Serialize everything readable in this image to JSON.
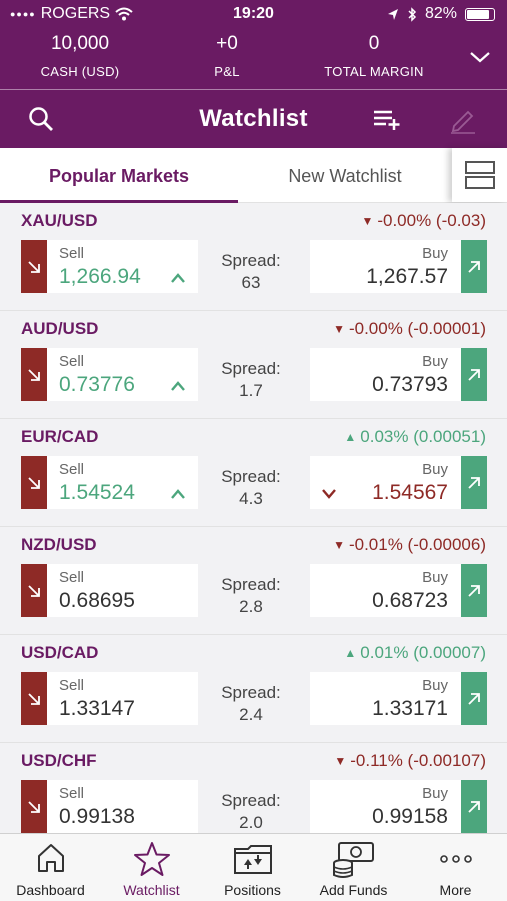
{
  "status": {
    "carrier": "ROGERS",
    "time": "19:20",
    "battery": "82%"
  },
  "account": {
    "cash_value": "10,000",
    "cash_label": "CASH (USD)",
    "pnl_value": "+0",
    "pnl_label": "P&L",
    "margin_value": "0",
    "margin_label": "TOTAL MARGIN"
  },
  "header": {
    "title": "Watchlist"
  },
  "tabs": {
    "active": "Popular Markets",
    "other": "New Watchlist"
  },
  "labels": {
    "sell": "Sell",
    "buy": "Buy",
    "spread": "Spread:"
  },
  "colors": {
    "brand": "#6a1b63",
    "sell": "#8e2a26",
    "buy": "#4ca67d"
  },
  "markets": [
    {
      "symbol": "XAU/USD",
      "change": "-0.00% (-0.03)",
      "direction": "down",
      "sell": "1,266.94",
      "sell_tick": "up",
      "spread": "63",
      "buy": "1,267.57",
      "buy_tick": "none"
    },
    {
      "symbol": "AUD/USD",
      "change": "-0.00% (-0.00001)",
      "direction": "down",
      "sell": "0.73776",
      "sell_tick": "up",
      "spread": "1.7",
      "buy": "0.73793",
      "buy_tick": "none"
    },
    {
      "symbol": "EUR/CAD",
      "change": "0.03% (0.00051)",
      "direction": "up",
      "sell": "1.54524",
      "sell_tick": "up",
      "spread": "4.3",
      "buy": "1.54567",
      "buy_tick": "down"
    },
    {
      "symbol": "NZD/USD",
      "change": "-0.01% (-0.00006)",
      "direction": "down",
      "sell": "0.68695",
      "sell_tick": "none",
      "spread": "2.8",
      "buy": "0.68723",
      "buy_tick": "none"
    },
    {
      "symbol": "USD/CAD",
      "change": "0.01% (0.00007)",
      "direction": "up",
      "sell": "1.33147",
      "sell_tick": "none",
      "spread": "2.4",
      "buy": "1.33171",
      "buy_tick": "none"
    },
    {
      "symbol": "USD/CHF",
      "change": "-0.11% (-0.00107)",
      "direction": "down",
      "sell": "0.99138",
      "sell_tick": "none",
      "spread": "2.0",
      "buy": "0.99158",
      "buy_tick": "none"
    }
  ],
  "tabbar": [
    {
      "label": "Dashboard",
      "icon": "home-icon"
    },
    {
      "label": "Watchlist",
      "icon": "star-icon"
    },
    {
      "label": "Positions",
      "icon": "positions-icon"
    },
    {
      "label": "Add Funds",
      "icon": "add-funds-icon"
    },
    {
      "label": "More",
      "icon": "more-icon"
    }
  ]
}
